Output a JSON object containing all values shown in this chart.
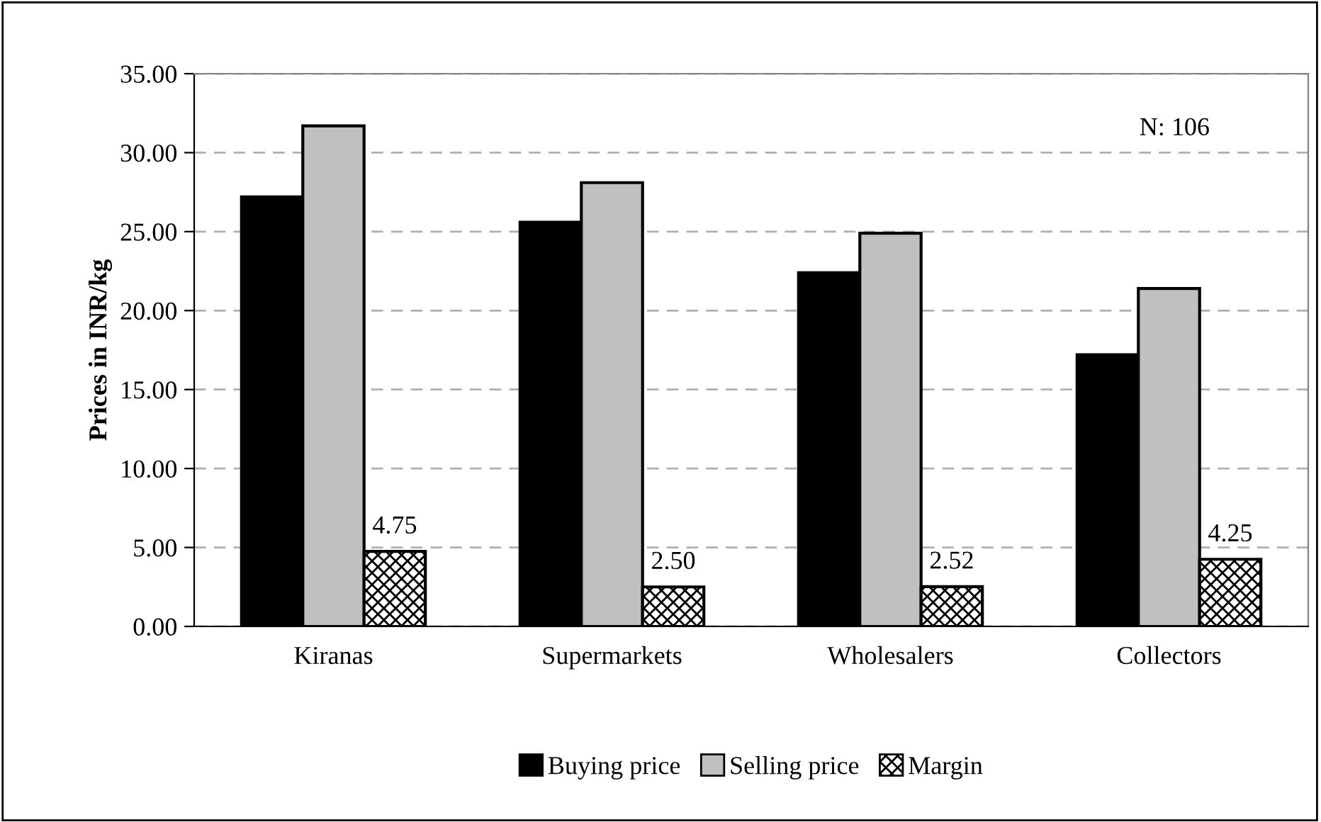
{
  "chart_data": {
    "type": "bar",
    "ylabel": "Prices in INR/kg",
    "categories": [
      "Kiranas",
      "Supermarkets",
      "Wholesalers",
      "Collectors"
    ],
    "series": [
      {
        "name": "Buying price",
        "color": "#000000",
        "values": [
          27.2,
          25.6,
          22.4,
          17.2
        ]
      },
      {
        "name": "Selling price",
        "color": "#c0c0c0",
        "values": [
          31.7,
          28.1,
          24.9,
          21.4
        ]
      },
      {
        "name": "Margin",
        "color": "#000000",
        "values": [
          4.75,
          2.5,
          2.52,
          4.25
        ],
        "value_labels": [
          "4.75",
          "2.50",
          "2.52",
          "4.25"
        ]
      }
    ],
    "ylim": [
      0,
      35
    ],
    "yticks": [
      {
        "value": 0,
        "label": "0.00"
      },
      {
        "value": 5,
        "label": "5.00"
      },
      {
        "value": 10,
        "label": "10.00"
      },
      {
        "value": 15,
        "label": "15.00"
      },
      {
        "value": 20,
        "label": "20.00"
      },
      {
        "value": 25,
        "label": "25.00"
      },
      {
        "value": 30,
        "label": "30.00"
      },
      {
        "value": 35,
        "label": "35.00"
      }
    ],
    "grid": "y",
    "legend": "bottom",
    "annotations": [
      "N: 106"
    ]
  }
}
